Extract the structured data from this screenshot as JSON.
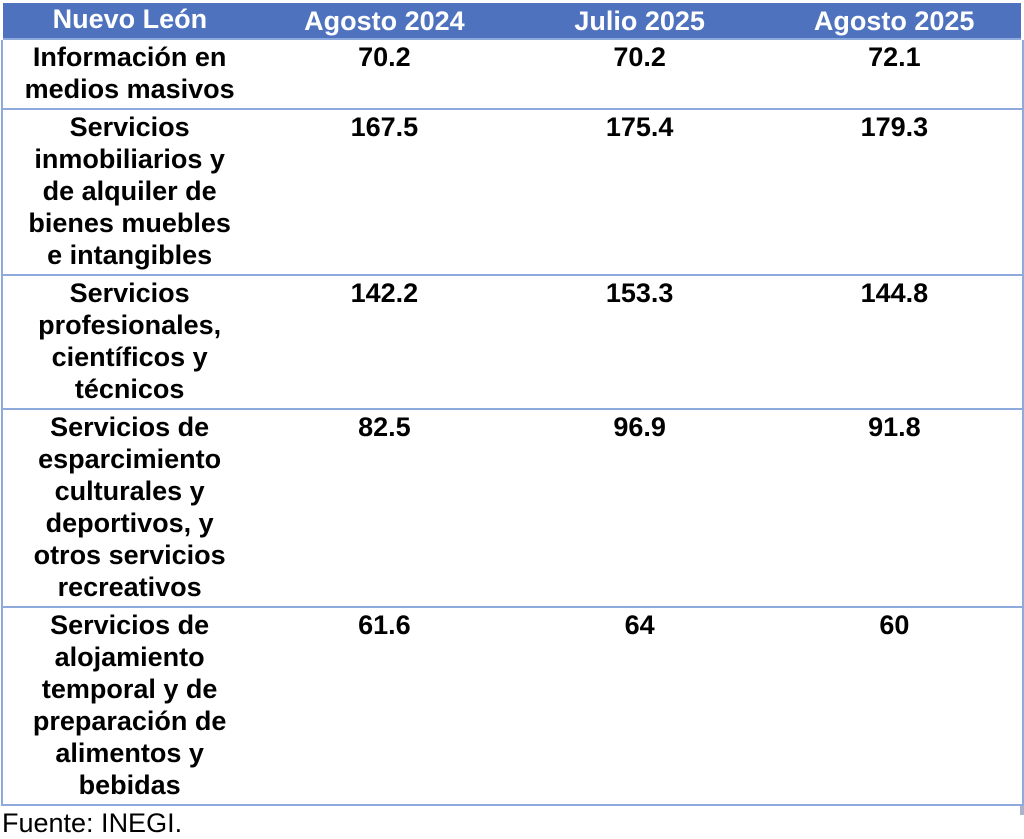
{
  "table": {
    "region_label": "Nuevo León",
    "columns": [
      "Agosto 2024",
      "Julio 2025",
      "Agosto 2025"
    ],
    "rows": [
      {
        "category": "Información en\nmedios masivos",
        "values": [
          "70.2",
          "70.2",
          "72.1"
        ]
      },
      {
        "category": "Servicios\ninmobiliarios y\nde alquiler de\nbienes muebles\ne intangibles",
        "values": [
          "167.5",
          "175.4",
          "179.3"
        ]
      },
      {
        "category": "Servicios\nprofesionales,\ncientíficos y\ntécnicos",
        "values": [
          "142.2",
          "153.3",
          "144.8"
        ]
      },
      {
        "category": "Servicios de\nesparcimiento\nculturales y\ndeportivos, y\notros servicios\nrecreativos",
        "values": [
          "82.5",
          "96.9",
          "91.8"
        ]
      },
      {
        "category": "Servicios de\nalojamiento\ntemporal y de\npreparación de\nalimentos y\nbebidas",
        "values": [
          "61.6",
          "64",
          "60"
        ]
      }
    ]
  },
  "footer": {
    "source": "Fuente: INEGI."
  },
  "colors": {
    "header_bg": "#4E72BE",
    "header_text": "#FFFFFF",
    "border": "#8EA9DB",
    "body_text": "#000000"
  }
}
